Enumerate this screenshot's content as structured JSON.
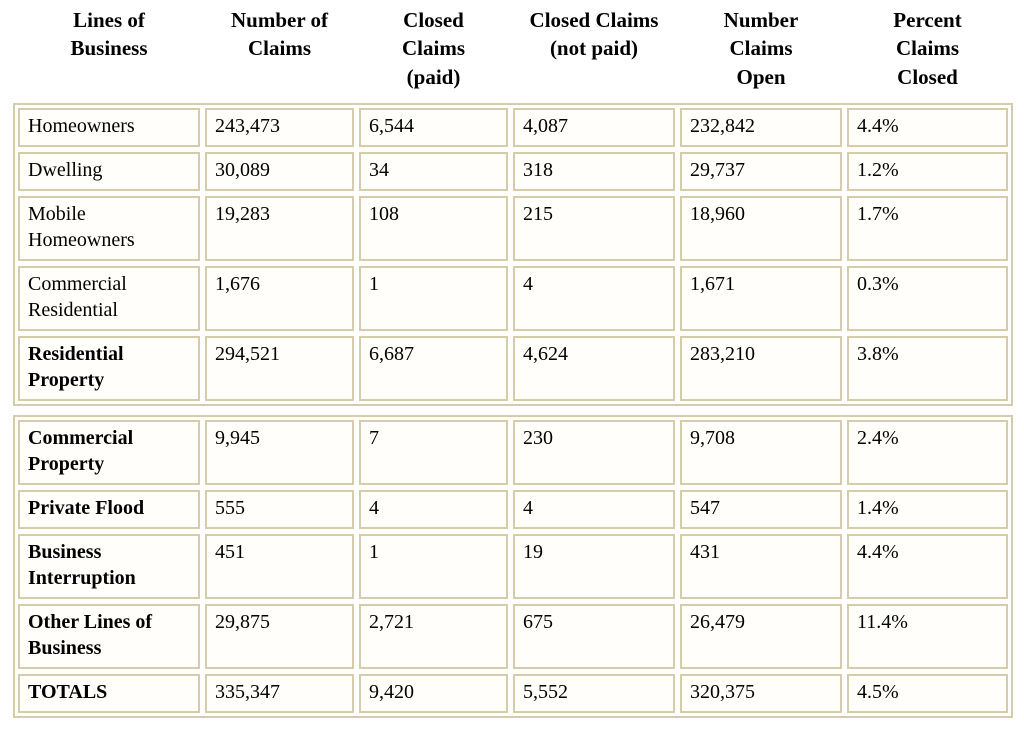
{
  "colors": {
    "table_border": "#d6ccaa",
    "cell_background": "#fffefa",
    "text": "#000000",
    "page_background": "#ffffff"
  },
  "chart_data": {
    "type": "table",
    "title": "",
    "columns": [
      "Lines of Business",
      "Number of Claims",
      "Closed Claims (paid)",
      "Closed Claims (not paid)",
      "Number Claims Open",
      "Percent Claims Closed"
    ],
    "sections": [
      {
        "rows": [
          {
            "label": "Homeowners",
            "bold": false,
            "values": [
              "243,473",
              "6,544",
              "4,087",
              "232,842",
              "4.4%"
            ]
          },
          {
            "label": "Dwelling",
            "bold": false,
            "values": [
              "30,089",
              "34",
              "318",
              "29,737",
              "1.2%"
            ]
          },
          {
            "label": "Mobile Homeowners",
            "bold": false,
            "values": [
              "19,283",
              "108",
              "215",
              "18,960",
              "1.7%"
            ]
          },
          {
            "label": "Commercial Residential",
            "bold": false,
            "values": [
              "1,676",
              "1",
              "4",
              "1,671",
              "0.3%"
            ]
          },
          {
            "label": "Residential Property",
            "bold": true,
            "values": [
              "294,521",
              "6,687",
              "4,624",
              "283,210",
              "3.8%"
            ]
          }
        ]
      },
      {
        "rows": [
          {
            "label": "Commercial Property",
            "bold": true,
            "values": [
              "9,945",
              "7",
              "230",
              "9,708",
              "2.4%"
            ]
          },
          {
            "label": "Private Flood",
            "bold": true,
            "values": [
              "555",
              "4",
              "4",
              "547",
              "1.4%"
            ]
          },
          {
            "label": "Business Interruption",
            "bold": true,
            "values": [
              "451",
              "1",
              "19",
              "431",
              "4.4%"
            ]
          },
          {
            "label": "Other Lines of Business",
            "bold": true,
            "values": [
              "29,875",
              "2,721",
              "675",
              "26,479",
              "11.4%"
            ]
          },
          {
            "label": "TOTALS",
            "bold": true,
            "values": [
              "335,347",
              "9,420",
              "5,552",
              "320,375",
              "4.5%"
            ]
          }
        ]
      }
    ]
  }
}
